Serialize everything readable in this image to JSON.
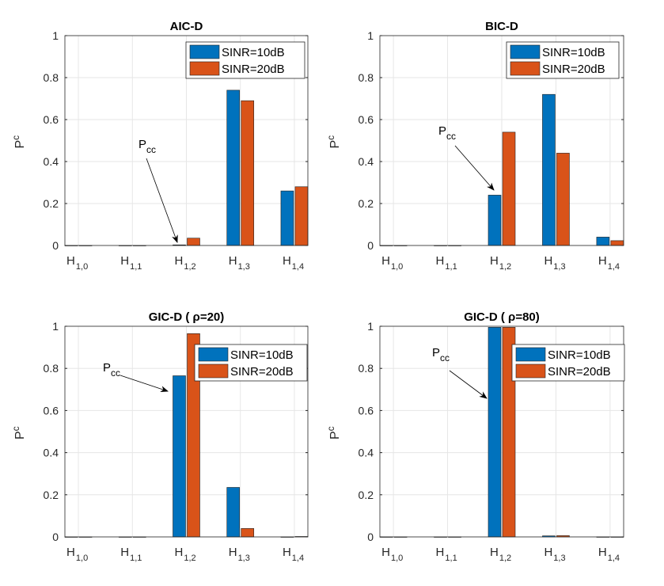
{
  "chart_data": [
    {
      "type": "bar",
      "title": "AIC-D",
      "ylabel": "P",
      "ylabel_sub": "c",
      "ylim": [
        0,
        1
      ],
      "grid": true,
      "categories": [
        [
          "H",
          "1,0"
        ],
        [
          "H",
          "1,1"
        ],
        [
          "H",
          "1,2"
        ],
        [
          "H",
          "1,3"
        ],
        [
          "H",
          "1,4"
        ]
      ],
      "yticks": [
        "0",
        "0.2",
        "0.4",
        "0.6",
        "0.8",
        "1"
      ],
      "series": [
        {
          "name": "SINR=10dB",
          "values": [
            0,
            0,
            0.003,
            0.74,
            0.26
          ]
        },
        {
          "name": "SINR=20dB",
          "values": [
            0,
            0,
            0.035,
            0.69,
            0.28
          ]
        }
      ],
      "legend": "top-right",
      "annotation": {
        "text": "P",
        "sub": "cc",
        "target": "H1,2 SINR=10dB"
      }
    },
    {
      "type": "bar",
      "title": "BIC-D",
      "ylabel": "P",
      "ylabel_sub": "c",
      "ylim": [
        0,
        1
      ],
      "grid": true,
      "categories": [
        [
          "H",
          "1,0"
        ],
        [
          "H",
          "1,1"
        ],
        [
          "H",
          "1,2"
        ],
        [
          "H",
          "1,3"
        ],
        [
          "H",
          "1,4"
        ]
      ],
      "yticks": [
        "0",
        "0.2",
        "0.4",
        "0.6",
        "0.8",
        "1"
      ],
      "series": [
        {
          "name": "SINR=10dB",
          "values": [
            0,
            0,
            0.24,
            0.72,
            0.04
          ]
        },
        {
          "name": "SINR=20dB",
          "values": [
            0,
            0,
            0.54,
            0.44,
            0.023
          ]
        }
      ],
      "legend": "top-right",
      "annotation": {
        "text": "P",
        "sub": "cc",
        "target": "H1,2 SINR=10dB"
      }
    },
    {
      "type": "bar",
      "title": "GIC-D (  ρ=20)",
      "ylabel": "P",
      "ylabel_sub": "c",
      "ylim": [
        0,
        1
      ],
      "grid": true,
      "categories": [
        [
          "H",
          "1,0"
        ],
        [
          "H",
          "1,1"
        ],
        [
          "H",
          "1,2"
        ],
        [
          "H",
          "1,3"
        ],
        [
          "H",
          "1,4"
        ]
      ],
      "yticks": [
        "0",
        "0.2",
        "0.4",
        "0.6",
        "0.8",
        "1"
      ],
      "series": [
        {
          "name": "SINR=10dB",
          "values": [
            0,
            0,
            0.765,
            0.235,
            0
          ]
        },
        {
          "name": "SINR=20dB",
          "values": [
            0,
            0,
            0.965,
            0.04,
            0.002
          ]
        }
      ],
      "legend": "top-right",
      "annotation": {
        "text": "P",
        "sub": "cc",
        "target": "H1,2 SINR=10dB"
      }
    },
    {
      "type": "bar",
      "title": "GIC-D (  ρ=80)",
      "ylabel": "P",
      "ylabel_sub": "c",
      "ylim": [
        0,
        1
      ],
      "grid": true,
      "categories": [
        [
          "H",
          "1,0"
        ],
        [
          "H",
          "1,1"
        ],
        [
          "H",
          "1,2"
        ],
        [
          "H",
          "1,3"
        ],
        [
          "H",
          "1,4"
        ]
      ],
      "yticks": [
        "0",
        "0.2",
        "0.4",
        "0.6",
        "0.8",
        "1"
      ],
      "series": [
        {
          "name": "SINR=10dB",
          "values": [
            0,
            0,
            0.995,
            0.005,
            0
          ]
        },
        {
          "name": "SINR=20dB",
          "values": [
            0,
            0,
            0.995,
            0.006,
            0
          ]
        }
      ],
      "legend": "top-right",
      "annotation": {
        "text": "P",
        "sub": "cc",
        "target": "H1,2 SINR=10dB"
      }
    }
  ],
  "colors": {
    "series": [
      "#0072BD",
      "#D95319"
    ],
    "grid": "#e6e6e6",
    "axis": "#262626"
  }
}
